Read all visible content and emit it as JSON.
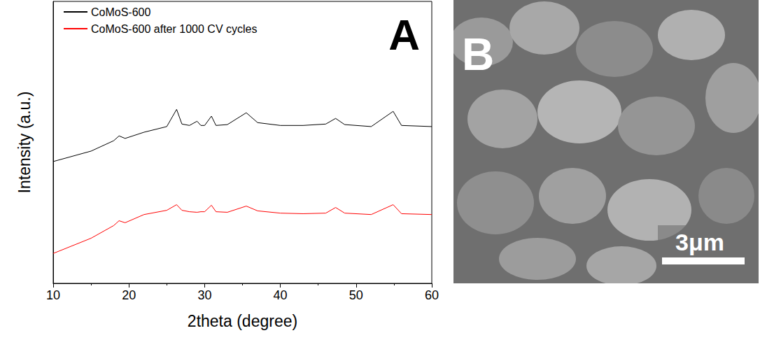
{
  "chart_data": {
    "type": "line",
    "x_label": "2theta (degree)",
    "y_label": "Intensity (a.u.)",
    "x": [
      10,
      15,
      18,
      18.7,
      19.5,
      22,
      25,
      26.3,
      27,
      28,
      29,
      29.5,
      30,
      30.9,
      31.5,
      33,
      35.5,
      37,
      40,
      43,
      46,
      47.3,
      48.5,
      52,
      54.9,
      56,
      60
    ],
    "series": [
      {
        "name": "CoMoS-600",
        "color": "#000000",
        "values": [
          43.2,
          46.9,
          50.6,
          52.3,
          51.4,
          53.6,
          55.6,
          61.7,
          56.5,
          56.0,
          57.5,
          56.0,
          56.0,
          59.3,
          56.0,
          56.3,
          60.5,
          57.0,
          56.0,
          56.0,
          56.5,
          58.5,
          56.3,
          55.6,
          61.0,
          56.0,
          55.6
        ]
      },
      {
        "name": "CoMoS-600 after 1000 CV cycles",
        "color": "#ff0000",
        "values": [
          10.6,
          16.0,
          20.5,
          22.2,
          21.5,
          24.4,
          25.9,
          27.9,
          25.9,
          25.4,
          25.2,
          25.4,
          25.4,
          27.7,
          25.4,
          25.2,
          27.4,
          25.7,
          24.9,
          24.7,
          24.9,
          26.9,
          24.9,
          24.4,
          27.9,
          24.7,
          24.4
        ]
      }
    ],
    "xlim": [
      10,
      60
    ],
    "xticks": [
      10,
      20,
      30,
      40,
      50,
      60
    ],
    "ylim": [
      0,
      100
    ],
    "tick_labels": "x",
    "grid": false,
    "legend": "upper left",
    "annotations": [
      "A"
    ]
  },
  "image_panel": {
    "label": "B",
    "scale_bar_label": "3μm"
  }
}
